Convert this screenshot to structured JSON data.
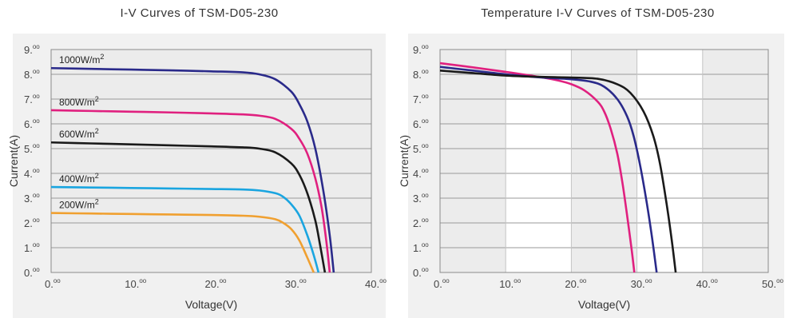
{
  "chart_data": [
    {
      "type": "line",
      "title": "I-V Curves of TSM-D05-230",
      "xlabel": "Voltage(V)",
      "ylabel": "Current(A)",
      "xlim": [
        0,
        40
      ],
      "ylim": [
        0,
        9
      ],
      "xticks": [
        0,
        10,
        20,
        30,
        40
      ],
      "xtick_labels": [
        "0.",
        "10.",
        "20.",
        "30.",
        "40."
      ],
      "yticks": [
        0,
        1,
        2,
        3,
        4,
        5,
        6,
        7,
        8,
        9
      ],
      "ytick_labels": [
        "0.",
        "1.",
        "2.",
        "3.",
        "4.",
        "5.",
        "6.",
        "7.",
        "8.",
        "9."
      ],
      "tick_suffix": "oo",
      "grid": "horizontal",
      "series": [
        {
          "name": "1000W/m2",
          "color": "#2a2a8a",
          "isc": 8.25,
          "isc_knee": 8.05,
          "voc": 35.3,
          "vknee": 26.0,
          "x": [
            0,
            5,
            10,
            15,
            20,
            24,
            26,
            28,
            30,
            31,
            32,
            33,
            34,
            34.8,
            35.3
          ],
          "y": [
            8.25,
            8.22,
            8.19,
            8.16,
            8.12,
            8.08,
            8.0,
            7.8,
            7.3,
            6.8,
            6.1,
            5.0,
            3.3,
            1.5,
            0
          ]
        },
        {
          "name": "800W/m2",
          "color": "#e0207f",
          "isc": 6.55,
          "voc": 34.8,
          "x": [
            0,
            5,
            10,
            15,
            20,
            24,
            26,
            28,
            30,
            31,
            32,
            33,
            33.8,
            34.4,
            34.8
          ],
          "y": [
            6.55,
            6.52,
            6.49,
            6.46,
            6.42,
            6.38,
            6.33,
            6.2,
            5.8,
            5.4,
            4.8,
            3.8,
            2.6,
            1.2,
            0
          ]
        },
        {
          "name": "600W/m2",
          "color": "#1a1a1a",
          "isc": 5.25,
          "voc": 34.2,
          "x": [
            0,
            5,
            10,
            15,
            20,
            24,
            26,
            28,
            30,
            31,
            32,
            33,
            33.6,
            34.2
          ],
          "y": [
            5.25,
            5.21,
            5.17,
            5.13,
            5.09,
            5.05,
            5.0,
            4.85,
            4.4,
            3.95,
            3.2,
            2.1,
            1.1,
            0
          ]
        },
        {
          "name": "400W/m2",
          "color": "#1aa5e0",
          "isc": 3.45,
          "voc": 33.4,
          "x": [
            0,
            5,
            10,
            15,
            20,
            24,
            26,
            28,
            29,
            30,
            31,
            32,
            32.8,
            33.4
          ],
          "y": [
            3.45,
            3.43,
            3.41,
            3.39,
            3.37,
            3.35,
            3.31,
            3.2,
            3.05,
            2.75,
            2.3,
            1.5,
            0.7,
            0
          ]
        },
        {
          "name": "200W/m2",
          "color": "#f0a030",
          "isc": 2.4,
          "voc": 32.8,
          "x": [
            0,
            5,
            10,
            15,
            20,
            24,
            26,
            28,
            29,
            30,
            31,
            32,
            32.8
          ],
          "y": [
            2.4,
            2.38,
            2.36,
            2.34,
            2.32,
            2.29,
            2.25,
            2.15,
            2.0,
            1.75,
            1.3,
            0.6,
            0
          ]
        }
      ],
      "annotations": [
        {
          "text": "1000W/m",
          "sup": "2",
          "x": 1.0,
          "y": 8.45
        },
        {
          "text": "800W/m",
          "sup": "2",
          "x": 1.0,
          "y": 6.75
        },
        {
          "text": "600W/m",
          "sup": "2",
          "x": 1.0,
          "y": 5.45
        },
        {
          "text": "400W/m",
          "sup": "2",
          "x": 1.0,
          "y": 3.65
        },
        {
          "text": "200W/m",
          "sup": "2",
          "x": 1.0,
          "y": 2.6
        }
      ]
    },
    {
      "type": "line",
      "title": "Temperature I-V Curves of TSM-D05-230",
      "xlabel": "Voltage(V)",
      "ylabel": "Current(A)",
      "xlim": [
        0,
        50
      ],
      "ylim": [
        0,
        9
      ],
      "xticks": [
        0,
        10,
        20,
        30,
        40,
        50
      ],
      "xtick_labels": [
        "0.",
        "10.",
        "20.",
        "30.",
        "40.",
        "50."
      ],
      "yticks": [
        0,
        1,
        2,
        3,
        4,
        5,
        6,
        7,
        8,
        9
      ],
      "ytick_labels": [
        "0.",
        "1.",
        "2.",
        "3.",
        "4.",
        "5.",
        "6.",
        "7.",
        "8.",
        "9."
      ],
      "tick_suffix": "oo",
      "grid": "both",
      "white_bands": [
        [
          10,
          20
        ],
        [
          30,
          40
        ]
      ],
      "series": [
        {
          "color": "#e0207f",
          "x": [
            0,
            5,
            10,
            15,
            18,
            20,
            22,
            24,
            25,
            26,
            27,
            27.8,
            28.5,
            29.2,
            29.6
          ],
          "y": [
            8.45,
            8.28,
            8.1,
            7.9,
            7.75,
            7.6,
            7.35,
            6.9,
            6.5,
            5.8,
            4.8,
            3.6,
            2.3,
            0.9,
            0
          ]
        },
        {
          "color": "#2a2a8a",
          "x": [
            0,
            5,
            10,
            15,
            20,
            23,
            25,
            27,
            28.5,
            29.5,
            30.5,
            31.5,
            32.3,
            33.0
          ],
          "y": [
            8.3,
            8.15,
            8.0,
            7.88,
            7.8,
            7.7,
            7.5,
            7.0,
            6.3,
            5.5,
            4.3,
            2.8,
            1.4,
            0
          ]
        },
        {
          "color": "#1a1a1a",
          "x": [
            0,
            5,
            10,
            15,
            20,
            24,
            27,
            29,
            31,
            32.5,
            33.5,
            34.5,
            35.3,
            35.9
          ],
          "y": [
            8.15,
            8.05,
            7.95,
            7.9,
            7.87,
            7.82,
            7.6,
            7.25,
            6.5,
            5.5,
            4.4,
            2.8,
            1.3,
            0
          ]
        }
      ]
    }
  ]
}
